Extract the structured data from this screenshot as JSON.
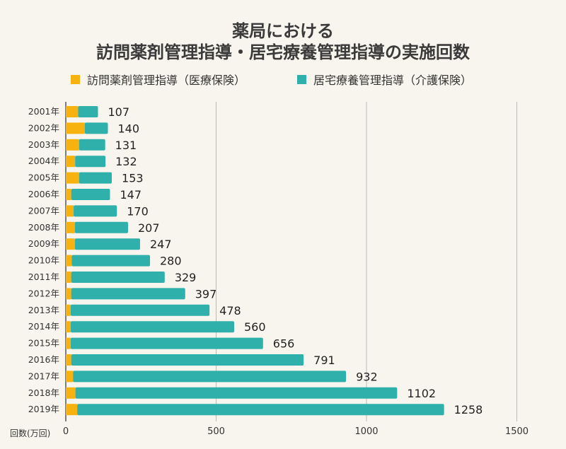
{
  "chart_data": {
    "type": "bar",
    "orientation": "horizontal",
    "stacked": true,
    "title": [
      "薬局における",
      "訪問薬剤管理指導・居宅療養管理指導の実施回数"
    ],
    "xlabel": "回数(万回)",
    "xlim": [
      0,
      1500
    ],
    "xticks": [
      0,
      500,
      1000,
      1500
    ],
    "grid": true,
    "legend_position": "top",
    "categories": [
      "2001年",
      "2002年",
      "2003年",
      "2004年",
      "2005年",
      "2006年",
      "2007年",
      "2008年",
      "2009年",
      "2010年",
      "2011年",
      "2012年",
      "2013年",
      "2014年",
      "2015年",
      "2016年",
      "2017年",
      "2018年",
      "2019年"
    ],
    "series": [
      {
        "name": "訪問薬剤管理指導（医療保険）",
        "color": "#f8b20f",
        "values": [
          41,
          63,
          44,
          31,
          44,
          18,
          26,
          30,
          30,
          20,
          18,
          18,
          16,
          16,
          16,
          18,
          24,
          32,
          38
        ]
      },
      {
        "name": "居宅療養管理指導（介護保険）",
        "color": "#2fb0aa",
        "values": [
          66,
          77,
          87,
          101,
          109,
          129,
          144,
          177,
          217,
          260,
          311,
          379,
          462,
          544,
          640,
          773,
          908,
          1070,
          1220
        ]
      }
    ],
    "totals": [
      107,
      140,
      131,
      132,
      153,
      147,
      170,
      207,
      247,
      280,
      329,
      397,
      478,
      560,
      656,
      791,
      932,
      1102,
      1258
    ]
  }
}
